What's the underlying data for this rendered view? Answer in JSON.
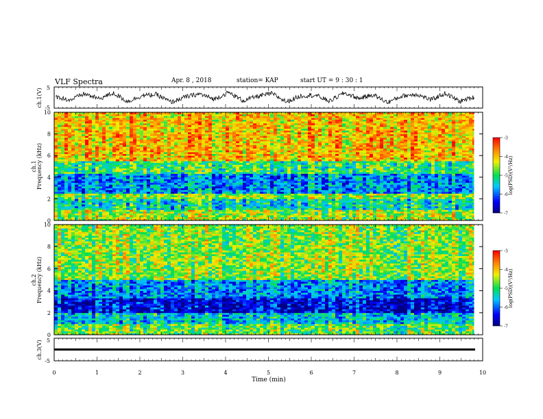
{
  "header": {
    "title": "VLF Spectra",
    "date": "Apr. 8 , 2018",
    "station": "station= KAP",
    "start": "start UT = 9 : 30 : 1"
  },
  "chart_data": [
    {
      "type": "line",
      "title": "",
      "ylabel": "ch.1(V)",
      "ylim": [
        -5,
        5
      ],
      "yticks": [
        "5",
        "-5"
      ],
      "x_range_min": [
        0,
        9.8
      ],
      "description_values": "dense waveform oscillating roughly between -3 and 3 V",
      "series": [
        {
          "values": [
            0.5,
            -1.2,
            1.8,
            -0.6,
            2.1,
            -1.9,
            0.9,
            1.4,
            -2.2,
            0.3,
            1.7,
            -0.8,
            2.4,
            -1.5,
            0.6,
            1.9,
            -2.0,
            0.8,
            1.1,
            -1.7,
            2.2,
            -0.4,
            1.3,
            -2.3,
            0.7,
            1.6,
            -1.1,
            2.0,
            -1.8,
            0.2
          ]
        }
      ]
    },
    {
      "type": "heatmap",
      "ylabel": "ch.1\nFrequency (kHz)",
      "ylim": [
        0,
        10
      ],
      "yticks": [
        "0",
        "2",
        "4",
        "6",
        "8",
        "10"
      ],
      "colorbar": {
        "label": "log(PSD)(V²/Hz)",
        "range": [
          -7,
          -3
        ],
        "ticks": [
          "-3",
          "-4",
          "-5",
          "-6",
          "-7"
        ]
      },
      "mean_log_psd_by_band": [
        {
          "f_low": 0,
          "f_high": 1,
          "value": -4.5
        },
        {
          "f_low": 1,
          "f_high": 2,
          "value": -5.3
        },
        {
          "f_low": 2,
          "f_high": 2.5,
          "value": -4.6
        },
        {
          "f_low": 2.5,
          "f_high": 4.3,
          "value": -5.8
        },
        {
          "f_low": 4.3,
          "f_high": 5.5,
          "value": -5.0
        },
        {
          "f_low": 5.5,
          "f_high": 10,
          "value": -4.0
        }
      ]
    },
    {
      "type": "heatmap",
      "ylabel": "ch.2\nFrequency (kHz)",
      "ylim": [
        0,
        10
      ],
      "yticks": [
        "0",
        "2",
        "4",
        "6",
        "8",
        "10"
      ],
      "colorbar": {
        "label": "log(PSD)(V²/Hz)",
        "range": [
          -7,
          -3
        ],
        "ticks": [
          "-3",
          "-4",
          "-5",
          "-6",
          "-7"
        ]
      },
      "mean_log_psd_by_band": [
        {
          "f_low": 0,
          "f_high": 1,
          "value": -4.8
        },
        {
          "f_low": 1,
          "f_high": 2,
          "value": -5.5
        },
        {
          "f_low": 2,
          "f_high": 3.3,
          "value": -6.5
        },
        {
          "f_low": 3.3,
          "f_high": 5,
          "value": -5.8
        },
        {
          "f_low": 5,
          "f_high": 10,
          "value": -4.6
        }
      ]
    },
    {
      "type": "line",
      "ylabel": "ch.3(V)",
      "ylim": [
        -5,
        5
      ],
      "yticks": [
        "5",
        "-5"
      ],
      "series": [
        {
          "values": [
            0,
            0
          ]
        }
      ]
    }
  ],
  "xaxis": {
    "label": "Time (min)",
    "range": [
      0,
      10
    ],
    "ticks": [
      "0",
      "1",
      "2",
      "3",
      "4",
      "5",
      "6",
      "7",
      "8",
      "9",
      "10"
    ]
  },
  "colors": {
    "red": "#e8140a",
    "orange": "#f5a000",
    "yellow": "#f0f000",
    "green": "#10e010",
    "cyan": "#00e0e0",
    "blue": "#0050ff",
    "navy": "#0000a0"
  }
}
